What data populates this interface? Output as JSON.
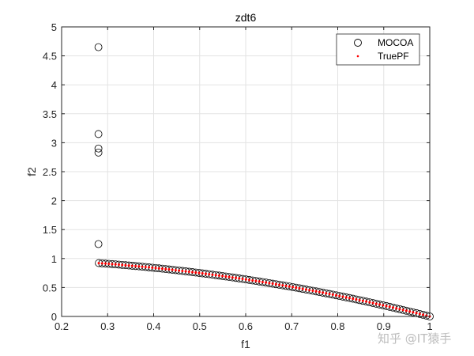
{
  "chart_data": {
    "type": "scatter",
    "title": "zdt6",
    "xlabel": "f1",
    "ylabel": "f2",
    "xlim": [
      0.2,
      1
    ],
    "ylim": [
      0,
      5
    ],
    "xticks": [
      "0.2",
      "0.3",
      "0.4",
      "0.5",
      "0.6",
      "0.7",
      "0.8",
      "0.9",
      "1"
    ],
    "yticks": [
      "0",
      "0.5",
      "1",
      "1.5",
      "2",
      "2.5",
      "3",
      "3.5",
      "4",
      "4.5",
      "5"
    ],
    "grid": true,
    "legend_position": "northeast",
    "series": [
      {
        "name": "MOCOA",
        "marker": "open-circle",
        "color": "#000000",
        "outliers": [
          {
            "x": 0.28,
            "y": 4.65
          },
          {
            "x": 0.28,
            "y": 3.15
          },
          {
            "x": 0.28,
            "y": 2.9
          },
          {
            "x": 0.28,
            "y": 2.83
          },
          {
            "x": 0.28,
            "y": 1.25
          }
        ],
        "front": {
          "f": "1 - f1^2",
          "x_from": 0.2808,
          "x_to": 1.0,
          "n": 100
        }
      },
      {
        "name": "TruePF",
        "marker": "dot",
        "color": "#ff0000",
        "front": {
          "f": "1 - f1^2",
          "x_from": 0.2808,
          "x_to": 1.0,
          "n": 100
        }
      }
    ]
  },
  "watermark": "知乎 @IT猿手"
}
